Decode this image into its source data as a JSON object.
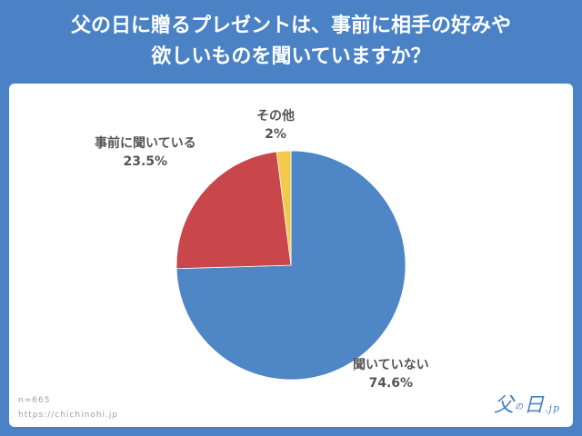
{
  "header": {
    "line1": "父の日に贈るプレゼントは、事前に相手の好みや",
    "line2": "欲しいものを聞いていますか？"
  },
  "chart_data": {
    "type": "pie",
    "slices": [
      {
        "label": "聞いていない",
        "value": 74.6,
        "display": "74.6%",
        "color": "#4f86c6"
      },
      {
        "label": "事前に聞いている",
        "value": 23.5,
        "display": "23.5%",
        "color": "#c9474a"
      },
      {
        "label": "その他",
        "value": 2,
        "display": "2%",
        "color": "#f3c94c"
      }
    ],
    "start_angle": "top",
    "direction": "clockwise"
  },
  "footer": {
    "sample": "n=665",
    "url": "https://chichinohi.jp"
  },
  "logo": {
    "main": "父",
    "no": "の",
    "day": "日",
    "jp": ".jp"
  }
}
